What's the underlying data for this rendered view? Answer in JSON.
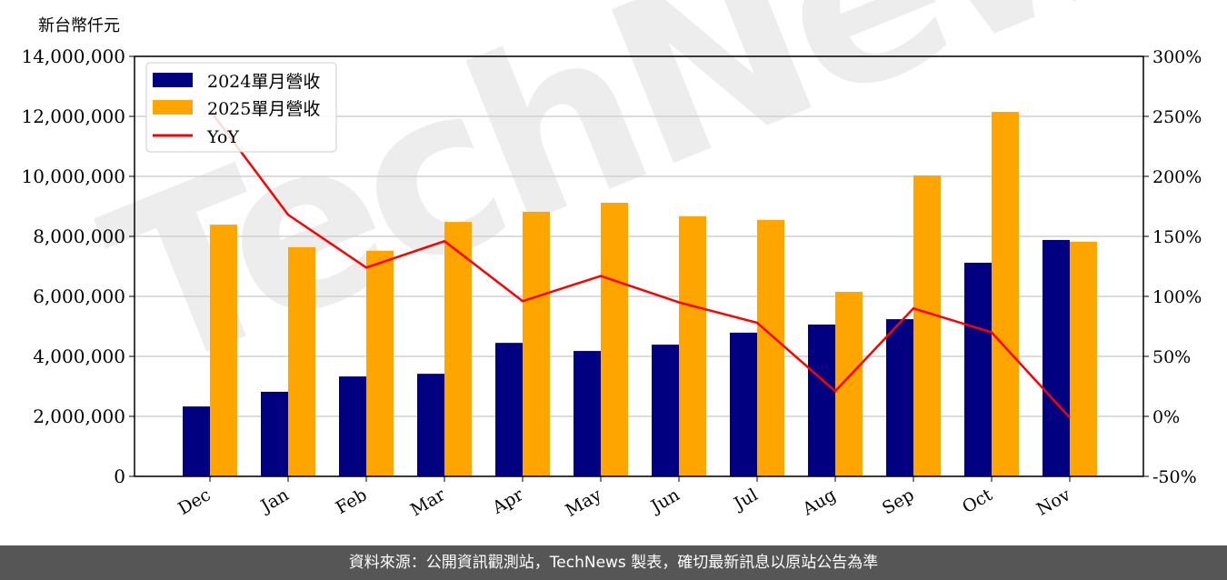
{
  "chart_data": {
    "type": "bar",
    "left_axis_unit": "新台幣仟元",
    "categories": [
      "Dec",
      "Jan",
      "Feb",
      "Mar",
      "Apr",
      "May",
      "Jun",
      "Jul",
      "Aug",
      "Sep",
      "Oct",
      "Nov"
    ],
    "series": [
      {
        "name": "2024單月營收",
        "type": "bar",
        "axis": "left",
        "color": "#000080",
        "values": [
          2330000,
          2820000,
          3330000,
          3420000,
          4450000,
          4180000,
          4390000,
          4790000,
          5060000,
          5240000,
          7120000,
          7880000
        ]
      },
      {
        "name": "2025單月營收",
        "type": "bar",
        "axis": "left",
        "color": "#FFA500",
        "values": [
          8390000,
          7640000,
          7520000,
          8480000,
          8820000,
          9120000,
          8670000,
          8550000,
          6150000,
          10030000,
          12150000,
          7820000
        ]
      },
      {
        "name": "YoY",
        "type": "line",
        "axis": "right",
        "color": "#FF0000",
        "values": [
          255,
          168,
          124,
          146,
          96,
          117,
          95,
          78,
          21,
          90,
          70,
          -1
        ]
      }
    ],
    "ylim_left": [
      0,
      14000000
    ],
    "yticks_left": [
      "0",
      "2,000,000",
      "4,000,000",
      "6,000,000",
      "8,000,000",
      "10,000,000",
      "12,000,000",
      "14,000,000"
    ],
    "ylim_right": [
      -50,
      300
    ],
    "yticks_right": [
      "-50%",
      "0%",
      "50%",
      "100%",
      "150%",
      "200%",
      "250%",
      "300%"
    ],
    "grid": "horizontal",
    "legend": "top-left",
    "watermark": "TechNews"
  },
  "footer": "資料來源：公開資訊觀測站，TechNews 製表，確切最新訊息以原站公告為準"
}
